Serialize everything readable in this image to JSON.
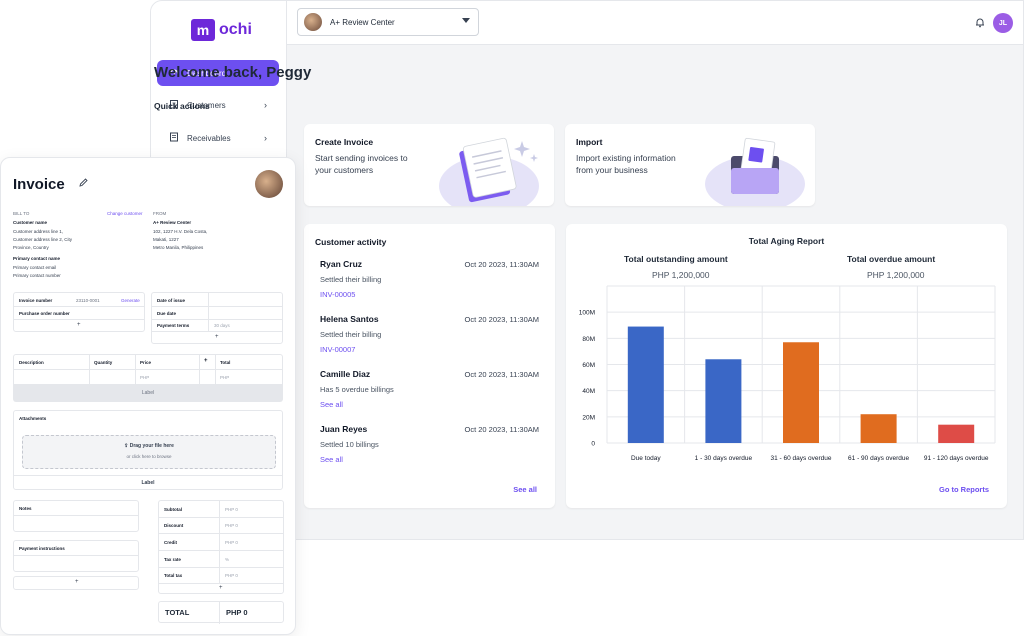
{
  "app": {
    "logo_letter": "m",
    "logo_text": "ochi",
    "brand_color": "#6d4ff0",
    "sidebar": {
      "items": [
        {
          "label": "Dashboard",
          "icon": "dashboard-icon",
          "active": true
        },
        {
          "label": "Customers",
          "icon": "building-icon"
        },
        {
          "label": "Receivables",
          "icon": "receipt-icon"
        }
      ]
    },
    "topbar": {
      "org_name": "A+ Review Center",
      "user_initials": "JL"
    },
    "welcome": "Welcome back, Peggy",
    "quick_actions": {
      "title": "Quick actions",
      "create": {
        "title": "Create Invoice",
        "sub": "Start sending invoices to your customers"
      },
      "import": {
        "title": "Import",
        "sub": "Import existing information from your business"
      }
    },
    "activity": {
      "title": "Customer activity",
      "items": [
        {
          "name": "Ryan Cruz",
          "date": "Oct 20 2023, 11:30AM",
          "desc": "Settled their billing",
          "link": "INV-00005"
        },
        {
          "name": "Helena Santos",
          "date": "Oct 20 2023, 11:30AM",
          "desc": "Settled their billing",
          "link": "INV-00007"
        },
        {
          "name": "Camille Diaz",
          "date": "Oct 20 2023, 11:30AM",
          "desc": "Has 5 overdue billings",
          "link": "See all"
        },
        {
          "name": "Juan Reyes",
          "date": "Oct 20 2023, 11:30AM",
          "desc": "Settled 10 billings",
          "link": "See all"
        }
      ],
      "see_all": "See all"
    },
    "aging": {
      "title": "Total Aging Report",
      "outstanding_label": "Total outstanding amount",
      "outstanding_value": "PHP 1,200,000",
      "overdue_label": "Total overdue amount",
      "overdue_value": "PHP 1,200,000",
      "go_to_reports": "Go to Reports"
    }
  },
  "chart_data": {
    "type": "bar",
    "categories": [
      "Due today",
      "1 - 30 days overdue",
      "31 - 60 days overdue",
      "61 - 90 days overdue",
      "91 - 120 days overdue"
    ],
    "values": [
      89000000,
      64000000,
      77000000,
      22000000,
      14000000
    ],
    "colors": [
      "#3a67c6",
      "#3a67c6",
      "#e06c1f",
      "#e06c1f",
      "#de4c47"
    ],
    "y_ticks": [
      "0",
      "20M",
      "40M",
      "60M",
      "80M",
      "100M"
    ],
    "ylim": [
      0,
      120000000
    ],
    "grid": true
  },
  "invoice": {
    "title": "Invoice",
    "bill_to_label": "BILL TO",
    "change_customer": "Change customer",
    "customer_name_label": "Customer name",
    "address1": "Customer address line 1,",
    "address2": "Customer address line 2, City",
    "address3": "Province, Country",
    "primary_contact_label": "Primary contact name",
    "primary_email": "Primary contact email",
    "primary_number": "Primary contact number",
    "from_label": "FROM",
    "from_name": "A+ Review Center",
    "from_addr1": "102, 1227 H.V. Dela Costa,",
    "from_addr2": "Makati, 1227",
    "from_addr3": "Metro Manila, Philippines",
    "invoice_number_label": "Invoice number",
    "invoice_number_value": "23110-0001",
    "generate": "Generate",
    "po_label": "Purchase order number",
    "date_issue_label": "Date of issue",
    "due_date_label": "Due date",
    "payment_terms_label": "Payment terms",
    "payment_terms_value": "30 days",
    "plus": "+",
    "table_headers": [
      "Description",
      "Quantity",
      "Price",
      "+",
      "Total"
    ],
    "php_placeholder": "PHP",
    "label_bar": "Label",
    "attachments_label": "Attachments",
    "drag_text": "Drag your file here",
    "browse_text": "or click here to browse",
    "label_text": "Label",
    "notes_label": "Notes",
    "payment_instructions_label": "Payment instructions",
    "summary": [
      {
        "label": "Subtotal",
        "value": "PHP 0"
      },
      {
        "label": "Discount",
        "value": "PHP 0"
      },
      {
        "label": "Credit",
        "value": "PHP 0"
      },
      {
        "label": "Tax rate",
        "value": "%"
      },
      {
        "label": "Total tax",
        "value": "PHP 0"
      }
    ],
    "total_label": "TOTAL",
    "total_value": "PHP 0"
  }
}
